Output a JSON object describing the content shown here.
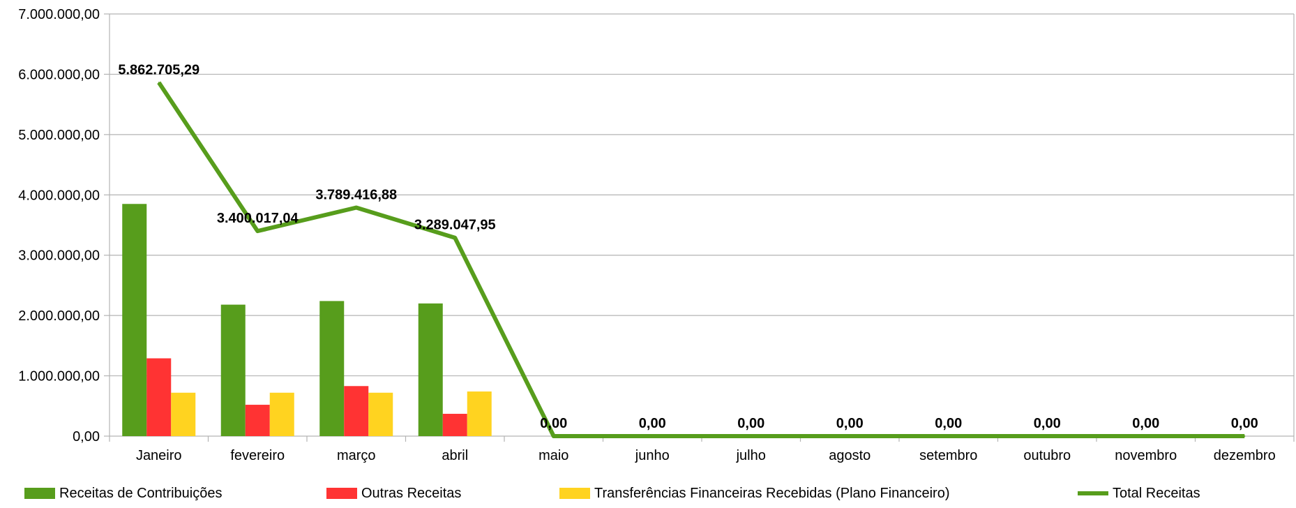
{
  "chart_data": {
    "type": "bar",
    "title": "",
    "xlabel": "",
    "ylabel": "",
    "ylim": [
      0,
      7000000
    ],
    "y_ticks": [
      0,
      1000000,
      2000000,
      3000000,
      4000000,
      5000000,
      6000000,
      7000000
    ],
    "y_tick_labels": [
      "0,00",
      "1.000.000,00",
      "2.000.000,00",
      "3.000.000,00",
      "4.000.000,00",
      "5.000.000,00",
      "6.000.000,00",
      "7.000.000,00"
    ],
    "grid": true,
    "legend_position": "bottom",
    "categories": [
      "Janeiro",
      "fevereiro",
      "março",
      "abril",
      "maio",
      "junho",
      "julho",
      "agosto",
      "setembro",
      "outubro",
      "novembro",
      "dezembro"
    ],
    "series": [
      {
        "name": "Receitas de Contribuições",
        "type": "bar",
        "color": "#579d1c",
        "values": [
          3850000,
          2180000,
          2240000,
          2200000,
          0,
          0,
          0,
          0,
          0,
          0,
          0,
          0
        ]
      },
      {
        "name": "Outras Receitas",
        "type": "bar",
        "color": "#ff3333",
        "values": [
          1290000,
          520000,
          830000,
          370000,
          0,
          0,
          0,
          0,
          0,
          0,
          0,
          0
        ]
      },
      {
        "name": "Transferências Financeiras Recebidas (Plano Financeiro)",
        "type": "bar",
        "color": "#ffd320",
        "values": [
          720000,
          720000,
          720000,
          740000,
          0,
          0,
          0,
          0,
          0,
          0,
          0,
          0
        ]
      },
      {
        "name": "Total Receitas",
        "type": "line",
        "color": "#579d1c",
        "values": [
          5862705.29,
          3400017.04,
          3789416.88,
          3289047.95,
          0,
          0,
          0,
          0,
          0,
          0,
          0,
          0
        ],
        "labels": [
          "5.862.705,29",
          "3.400.017,04",
          "3.789.416,88",
          "3.289.047,95",
          "0,00",
          "0,00",
          "0,00",
          "0,00",
          "0,00",
          "0,00",
          "0,00",
          "0,00"
        ]
      }
    ]
  }
}
